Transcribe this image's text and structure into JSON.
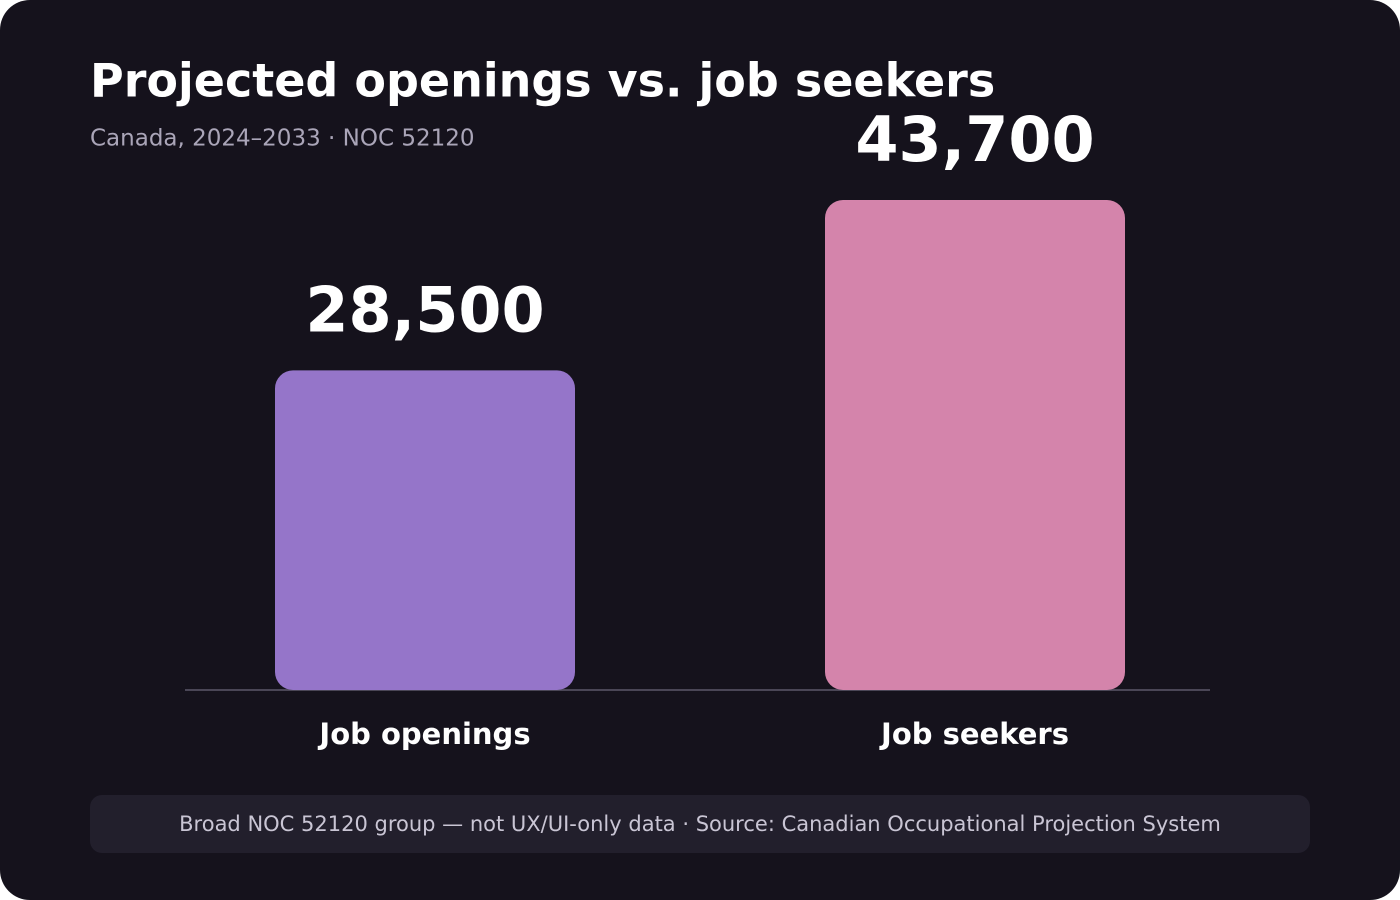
{
  "chart_data": {
    "type": "bar",
    "title": "Projected openings vs. job seekers",
    "subtitle": "Canada, 2024–2033 · NOC 52120",
    "categories": [
      "Job openings",
      "Job seekers"
    ],
    "values": [
      28500,
      43700
    ],
    "value_labels": [
      "28,500",
      "43,700"
    ],
    "colors": [
      "#9575c9",
      "#d484ab"
    ],
    "footnote": "Broad NOC 52120 group — not UX/UI-only data · Source: Canadian Occupational Projection System"
  }
}
